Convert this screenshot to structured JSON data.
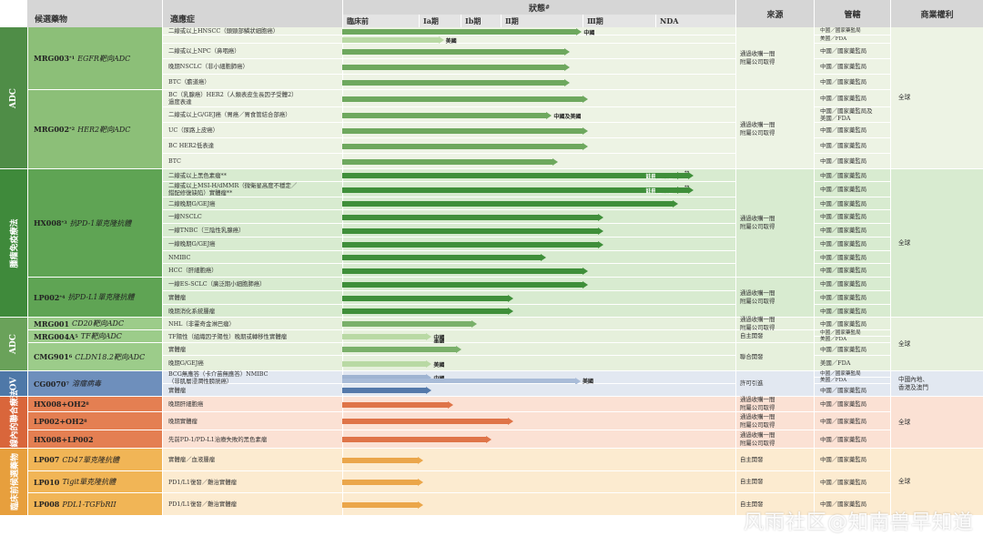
{
  "headers": {
    "drug": "候選藥物",
    "indication": "適應症",
    "status": "狀態",
    "status_sup": "#",
    "source": "來源",
    "regulator": "管轄",
    "rights": "商業權利",
    "phases": [
      "臨床前",
      "Ⅰa期",
      "Ⅰb期",
      "Ⅱ期",
      "Ⅲ期",
      "NDA"
    ]
  },
  "categories": [
    {
      "label": "ADC",
      "color": "#4f8d47"
    },
    {
      "label": "腫瘤免疫療法",
      "color": "#3f8a3b"
    },
    {
      "label": "ADC",
      "color": "#6aa25a"
    },
    {
      "label": "OV",
      "color": "#4e78a8"
    },
    {
      "label": "管線內的聯合療法",
      "color": "#d9663b"
    },
    {
      "label": "臨床前候選藥物",
      "color": "#e79f3d"
    }
  ],
  "drugs": [
    {
      "name": "MRG003",
      "sup": "*1",
      "desc": "EGFR靶向ADC"
    },
    {
      "name": "MRG002",
      "sup": "*2",
      "desc": "HER2靶向ADC"
    },
    {
      "name": "HX008",
      "sup": "*3",
      "desc": "抗PD-1單克隆抗體"
    },
    {
      "name": "LP002",
      "sup": "*4",
      "desc": "抗PD-L1單克隆抗體"
    },
    {
      "name": "MRG001",
      "sup": "",
      "desc": "CD20靶向ADC"
    },
    {
      "name": "MRG004A",
      "sup": "5",
      "desc": "TF靶向ADC"
    },
    {
      "name": "CMG901",
      "sup": "6",
      "desc": "CLDN18.2靶向ADC"
    },
    {
      "name": "CG0070",
      "sup": "7",
      "desc": "溶瘤病毒"
    },
    {
      "name": "HX008+OH2",
      "sup": "8",
      "desc": ""
    },
    {
      "name": "LP002+OH2",
      "sup": "8",
      "desc": ""
    },
    {
      "name": "HX008+LP002",
      "sup": "",
      "desc": ""
    },
    {
      "name": "LP007",
      "sup": "",
      "desc": "CD47單克隆抗體"
    },
    {
      "name": "LP010",
      "sup": "",
      "desc": "Tigit單克隆抗體"
    },
    {
      "name": "LP008",
      "sup": "",
      "desc": "PDL1-TGFbRII"
    }
  ],
  "indications": [
    {
      "text": "二線或以上HNSCC（頭頸部鱗狀細胞癌）",
      "progress": 0.78,
      "label": "中國",
      "label2": ""
    },
    {
      "text": "",
      "progress": 0.32,
      "label": "美國",
      "label2": ""
    },
    {
      "text": "二線或以上NPC（鼻咽癌）",
      "progress": 0.74,
      "label": "",
      "label2": ""
    },
    {
      "text": "晚期NSCLC（非小細胞肺癌）",
      "progress": 0.74,
      "label": "",
      "label2": ""
    },
    {
      "text": "BTC（膽道癌）",
      "progress": 0.74,
      "label": "",
      "label2": ""
    },
    {
      "text": "BC（乳腺癌）HER2（人類表皮生長因子受體2）\n過度表達",
      "progress": 0.8,
      "label": "",
      "label2": ""
    },
    {
      "text": "二線或以上G/GEJ癌（胃癌／胃食管結合部癌）",
      "progress": 0.68,
      "label": "中國及美國",
      "label2": ""
    },
    {
      "text": "UC（尿路上皮癌）",
      "progress": 0.8,
      "label": "",
      "label2": ""
    },
    {
      "text": "BC HER2低表達",
      "progress": 0.8,
      "label": "",
      "label2": ""
    },
    {
      "text": "BTC",
      "progress": 0.7,
      "label": "",
      "label2": ""
    },
    {
      "text": "二線或以上黑色素瘤**",
      "progress": 1.15,
      "label": "註冊性試驗",
      "label2": "**"
    },
    {
      "text": "二線或以上MSI-H/dMMR（微衛星高度不穩定／\n錯配修復缺陷）實體瘤**",
      "progress": 1.15,
      "label": "註冊性試驗",
      "label2": "**"
    },
    {
      "text": "二線晚期G/GEJ癌",
      "progress": 1.1,
      "label": "",
      "label2": ""
    },
    {
      "text": "一線NSCLC",
      "progress": 0.85,
      "label": "",
      "label2": ""
    },
    {
      "text": "一線TNBC（三陰性乳腺癌）",
      "progress": 0.85,
      "label": "",
      "label2": ""
    },
    {
      "text": "一線晚期G/GEJ癌",
      "progress": 0.85,
      "label": "",
      "label2": ""
    },
    {
      "text": "NMIBC",
      "progress": 0.66,
      "label": "",
      "label2": ""
    },
    {
      "text": "HCC（肝細胞癌）",
      "progress": 0.8,
      "label": "",
      "label2": ""
    },
    {
      "text": "一線ES-SCLC（廣泛期小細胞肺癌）",
      "progress": 0.8,
      "label": "",
      "label2": ""
    },
    {
      "text": "實體瘤",
      "progress": 0.55,
      "label": "",
      "label2": ""
    },
    {
      "text": "晚期消化系統腫瘤",
      "progress": 0.55,
      "label": "",
      "label2": ""
    },
    {
      "text": "NHL（非霍奇金淋巴瘤）",
      "progress": 0.43,
      "label": "",
      "label2": ""
    },
    {
      "text": "TF陽性（組織因子陽性）晚期或轉移性實體瘤",
      "progress": 0.28,
      "label": "中國",
      "label2": "美國"
    },
    {
      "text": "實體瘤",
      "progress": 0.38,
      "label": "",
      "label2": ""
    },
    {
      "text": "晚期G/GEJ癌",
      "progress": 0.28,
      "label": "美國",
      "label2": ""
    },
    {
      "text": "BCG無應答（卡介苗無應答）NMIBC\n（非肌層浸潤性膀胱癌）",
      "progress": 0.28,
      "label": "中國",
      "label2": "美國"
    },
    {
      "text": "實體瘤",
      "progress": 0.28,
      "label": "",
      "label2": ""
    },
    {
      "text": "晚期肝細胞癌",
      "progress": 0.35,
      "label": "",
      "label2": ""
    },
    {
      "text": "晚期實體瘤",
      "progress": 0.55,
      "label": "",
      "label2": ""
    },
    {
      "text": "先前PD-1/PD-L1治療失敗的黑色素瘤",
      "progress": 0.48,
      "label": "",
      "label2": ""
    },
    {
      "text": "實體瘤／血液腫瘤",
      "progress": 0.25,
      "label": "",
      "label2": ""
    },
    {
      "text": "PD1/L1復發／難治實體瘤",
      "progress": 0.25,
      "label": "",
      "label2": ""
    },
    {
      "text": "PD1/L1復發／難治實體瘤",
      "progress": 0.25,
      "label": "",
      "label2": ""
    }
  ],
  "sources": [
    {
      "text": "通過收購一間\n附屬公司取得"
    },
    {
      "text": "通過收購一間\n附屬公司取得"
    },
    {
      "text": "通過收購一間\n附屬公司取得"
    },
    {
      "text": "通過收購一間\n附屬公司取得"
    },
    {
      "text": "通過收購一間\n附屬公司取得"
    },
    {
      "text": "自主開發"
    },
    {
      "text": "聯合開發"
    },
    {
      "text": "許可引進"
    },
    {
      "text": "通過收購一間\n附屬公司取得"
    },
    {
      "text": "通過收購一間\n附屬公司取得"
    },
    {
      "text": "通過收購一間\n附屬公司取得"
    },
    {
      "text": "自主開發"
    },
    {
      "text": "自主開發"
    },
    {
      "text": "自主開發"
    }
  ],
  "regulators": [
    "中國／國家藥監局",
    "美國／FDA",
    "中國／國家藥監局",
    "中國／國家藥監局",
    "中國／國家藥監局",
    "中國／國家藥監局",
    "中國／國家藥監局及\n美國／FDA",
    "中國／國家藥監局",
    "中國／國家藥監局",
    "中國／國家藥監局",
    "中國／國家藥監局",
    "中國／國家藥監局",
    "中國／國家藥監局",
    "中國／國家藥監局",
    "中國／國家藥監局",
    "中國／國家藥監局",
    "中國／國家藥監局",
    "中國／國家藥監局",
    "中國／國家藥監局",
    "中國／國家藥監局",
    "中國／國家藥監局",
    "中國／國家藥監局",
    "中國／國家藥監局",
    "美國／FDA",
    "中國／國家藥監局",
    "美國／FDA",
    "中國／國家藥監局",
    "美國／FDA",
    "中國／國家藥監局",
    "中國／國家藥監局",
    "中國／國家藥監局",
    "中國／國家藥監局",
    "中國／國家藥監局",
    "中國／國家藥監局",
    "中國／國家藥監局"
  ],
  "rights": [
    {
      "text": "全球"
    },
    {
      "text": "全球"
    },
    {
      "text": "全球"
    },
    {
      "text": "中國內地、\n香港及澳門"
    },
    {
      "text": "全球"
    },
    {
      "text": "全球"
    }
  ],
  "watermark": "风雨社区@知南兽早知道"
}
